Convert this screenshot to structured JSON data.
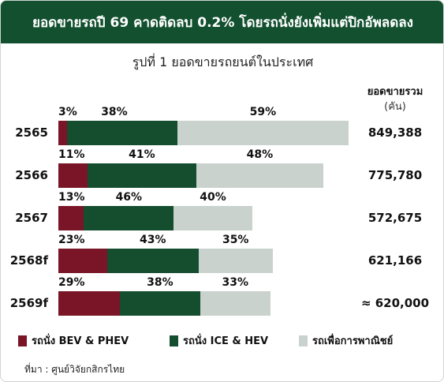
{
  "header": {
    "title": "ยอดขายรถปี 69 คาดติดลบ 0.2% โดยรถนั่งยังเพิ่มแต่ปิกอัพลดลง"
  },
  "subtitle": "รูปที่ 1 ยอดขายรถยนต์ในประเทศ",
  "totals_header": {
    "label": "ยอดขายรวม",
    "unit": "(คัน)"
  },
  "legend": [
    {
      "label": "รถนั่ง BEV & PHEV",
      "color": "#7a1527"
    },
    {
      "label": "รถนั่ง ICE & HEV",
      "color": "#154d2f"
    },
    {
      "label": "รถเพื่อการพาณิชย์",
      "color": "#c9d2cd"
    }
  ],
  "source": "ที่มา : ศูนย์วิจัยกสิกรไทย",
  "chart_data": {
    "type": "bar",
    "orientation": "horizontal",
    "stacked": true,
    "title": "รูปที่ 1 ยอดขายรถยนต์ในประเทศ",
    "categories": [
      "2565",
      "2566",
      "2567",
      "2568f",
      "2569f"
    ],
    "totals": [
      849388,
      775780,
      572675,
      621166,
      620000
    ],
    "totals_labels": [
      "849,388",
      "775,780",
      "572,675",
      "621,166",
      "≈ 620,000"
    ],
    "series": [
      {
        "name": "รถนั่ง BEV & PHEV",
        "color": "#7a1527",
        "percent": [
          3,
          11,
          13,
          23,
          29
        ]
      },
      {
        "name": "รถนั่ง ICE & HEV",
        "color": "#154d2f",
        "percent": [
          38,
          41,
          46,
          43,
          38
        ]
      },
      {
        "name": "รถเพื่อการพาณิชย์",
        "color": "#c9d2cd",
        "percent": [
          59,
          48,
          40,
          35,
          33
        ]
      }
    ],
    "percent_labels": [
      [
        "3%",
        "38%",
        "59%"
      ],
      [
        "11%",
        "41%",
        "48%"
      ],
      [
        "13%",
        "46%",
        "40%"
      ],
      [
        "23%",
        "43%",
        "35%"
      ],
      [
        "29%",
        "38%",
        "33%"
      ]
    ],
    "xlim": [
      0,
      849388
    ],
    "legend_position": "bottom"
  }
}
